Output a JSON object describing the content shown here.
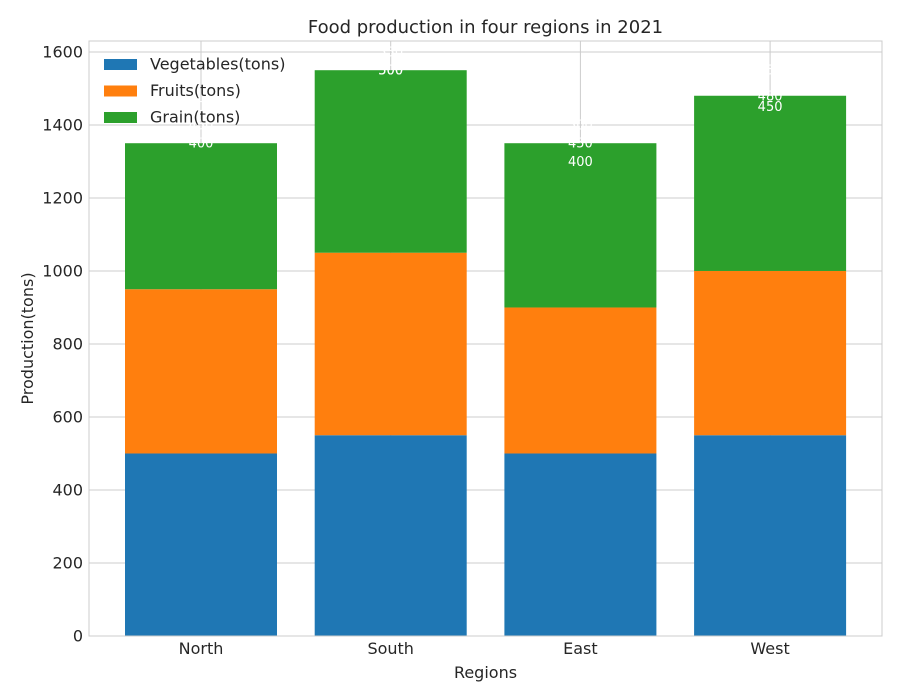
{
  "chart_data": {
    "type": "bar",
    "stacked": true,
    "title": "Food production in four regions in 2021",
    "xlabel": "Regions",
    "ylabel": "Production(tons)",
    "ylim": [
      0,
      1630
    ],
    "yticks": [
      0,
      200,
      400,
      600,
      800,
      1000,
      1200,
      1400,
      1600
    ],
    "grid": true,
    "legend_position": "top-left",
    "categories": [
      "North",
      "South",
      "East",
      "West"
    ],
    "series": [
      {
        "name": "Vegetables(tons)",
        "color": "#1f77b4",
        "values": [
          500,
          550,
          500,
          550
        ]
      },
      {
        "name": "Fruits(tons)",
        "color": "#ff7f0e",
        "values": [
          450,
          500,
          400,
          450
        ]
      },
      {
        "name": "Grain(tons)",
        "color": "#2ca02c",
        "values": [
          400,
          500,
          450,
          480
        ]
      }
    ],
    "bar_label_color": "#ffffff"
  }
}
